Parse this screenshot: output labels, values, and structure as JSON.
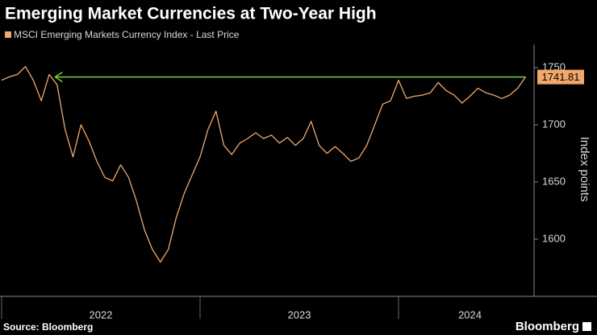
{
  "chart_data": {
    "type": "line",
    "title": "Emerging Market Currencies at Two-Year High",
    "legend_label": "MSCI Emerging Markets Currency Index - Last Price",
    "y_label": "Index points",
    "source": "Source: Bloomberg",
    "brand": "Bloomberg",
    "color": "#f2a86a",
    "x": [
      2022.0,
      2022.04,
      2022.08,
      2022.12,
      2022.16,
      2022.2,
      2022.24,
      2022.28,
      2022.32,
      2022.36,
      2022.4,
      2022.44,
      2022.48,
      2022.52,
      2022.56,
      2022.6,
      2022.64,
      2022.68,
      2022.72,
      2022.76,
      2022.8,
      2022.84,
      2022.88,
      2022.92,
      2022.96,
      2023.0,
      2023.04,
      2023.08,
      2023.12,
      2023.16,
      2023.2,
      2023.24,
      2023.28,
      2023.32,
      2023.36,
      2023.4,
      2023.44,
      2023.48,
      2023.52,
      2023.56,
      2023.6,
      2023.64,
      2023.68,
      2023.72,
      2023.76,
      2023.8,
      2023.84,
      2023.88,
      2023.92,
      2023.96,
      2024.0,
      2024.04,
      2024.08,
      2024.12,
      2024.16,
      2024.2,
      2024.24,
      2024.28,
      2024.32,
      2024.36,
      2024.4,
      2024.44,
      2024.48,
      2024.52,
      2024.56,
      2024.6,
      2024.64
    ],
    "values": [
      1739,
      1742,
      1744,
      1751,
      1739,
      1721,
      1744,
      1735,
      1696,
      1672,
      1700,
      1686,
      1668,
      1654,
      1651,
      1665,
      1654,
      1633,
      1608,
      1591,
      1580,
      1591,
      1619,
      1640,
      1656,
      1672,
      1696,
      1712,
      1682,
      1674,
      1684,
      1688,
      1693,
      1688,
      1691,
      1684,
      1689,
      1682,
      1688,
      1703,
      1682,
      1675,
      1681,
      1675,
      1668,
      1671,
      1682,
      1700,
      1718,
      1721,
      1739,
      1723,
      1725,
      1726,
      1728,
      1737,
      1730,
      1726,
      1719,
      1725,
      1732,
      1728,
      1726,
      1723,
      1726,
      1732,
      1741.81
    ],
    "reference_line": {
      "value": 1741.81,
      "from_x": 2022.27,
      "color": "#7ccd3c"
    },
    "xlim": [
      2021.992,
      2024.683
    ],
    "xticks": [
      {
        "value": 2022.5,
        "label": "2022"
      },
      {
        "value": 2023.5,
        "label": "2023"
      },
      {
        "value": 2024.36,
        "label": "2024"
      }
    ],
    "ylim": [
      1550,
      1770
    ],
    "yticks": [
      1600,
      1650,
      1700,
      1750
    ]
  }
}
